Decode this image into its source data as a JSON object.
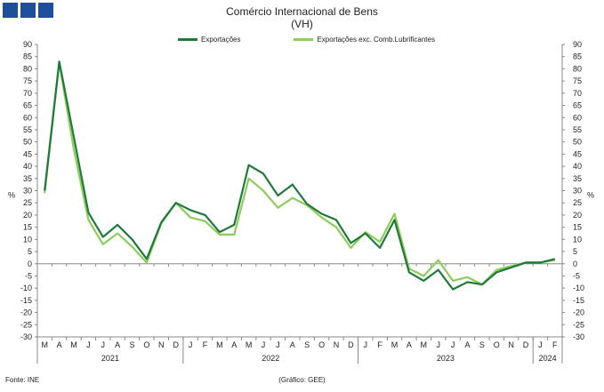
{
  "header": {
    "title": "Comércio Internacional de Bens",
    "subtitle": "(VH)"
  },
  "footer": {
    "source": "Fonte: INE",
    "credit": "(Gráfico: GEE)"
  },
  "colors": {
    "series1": "#1e7a3a",
    "series2": "#8ccc5a",
    "logo": "#1f4e9c"
  },
  "chart_data": {
    "type": "line",
    "title": "Comércio Internacional de Bens",
    "subtitle": "(VH)",
    "ylabel_left": "%",
    "ylabel_right": "%",
    "ylim": [
      -30,
      90
    ],
    "yticks": [
      90,
      85,
      80,
      75,
      70,
      65,
      60,
      55,
      50,
      45,
      40,
      35,
      30,
      25,
      20,
      15,
      10,
      5,
      0,
      -5,
      -10,
      -15,
      -20,
      -25,
      -30
    ],
    "grid": false,
    "legend_position": "top",
    "categories": [
      "M",
      "A",
      "M",
      "J",
      "J",
      "A",
      "S",
      "O",
      "N",
      "D",
      "J",
      "F",
      "M",
      "A",
      "M",
      "J",
      "J",
      "A",
      "S",
      "O",
      "N",
      "D",
      "J",
      "F",
      "M",
      "A",
      "M",
      "J",
      "J",
      "A",
      "S",
      "O",
      "N",
      "D",
      "J",
      "F"
    ],
    "years": [
      {
        "label": "2021"
      },
      {
        "label": "2022"
      },
      {
        "label": "2023"
      },
      {
        "label": "2024"
      }
    ],
    "series": [
      {
        "name": "Exportações",
        "values": [
          30,
          83,
          52,
          21,
          11,
          16,
          10,
          2,
          17,
          25,
          22,
          20,
          13,
          16,
          40.5,
          37,
          28,
          32.5,
          24.5,
          20.5,
          18,
          8.5,
          12.5,
          6.5,
          18,
          -3.5,
          -7,
          -2.5,
          -10.5,
          -7.5,
          -8.5,
          -3.5,
          -1.5,
          0.5,
          0.5,
          2
        ]
      },
      {
        "name": "Exportações exc. Comb.Lubrificantes",
        "values": [
          29,
          82.5,
          47,
          18,
          8,
          12.5,
          7,
          0.5,
          16.5,
          25,
          19,
          17.5,
          12,
          12,
          35,
          30,
          23,
          27,
          24,
          19,
          15,
          6.5,
          13,
          9,
          20.5,
          -2,
          -5,
          1.5,
          -7,
          -5.5,
          -8.5,
          -2.5,
          -1,
          0.5,
          0.5,
          1.5
        ]
      }
    ]
  }
}
